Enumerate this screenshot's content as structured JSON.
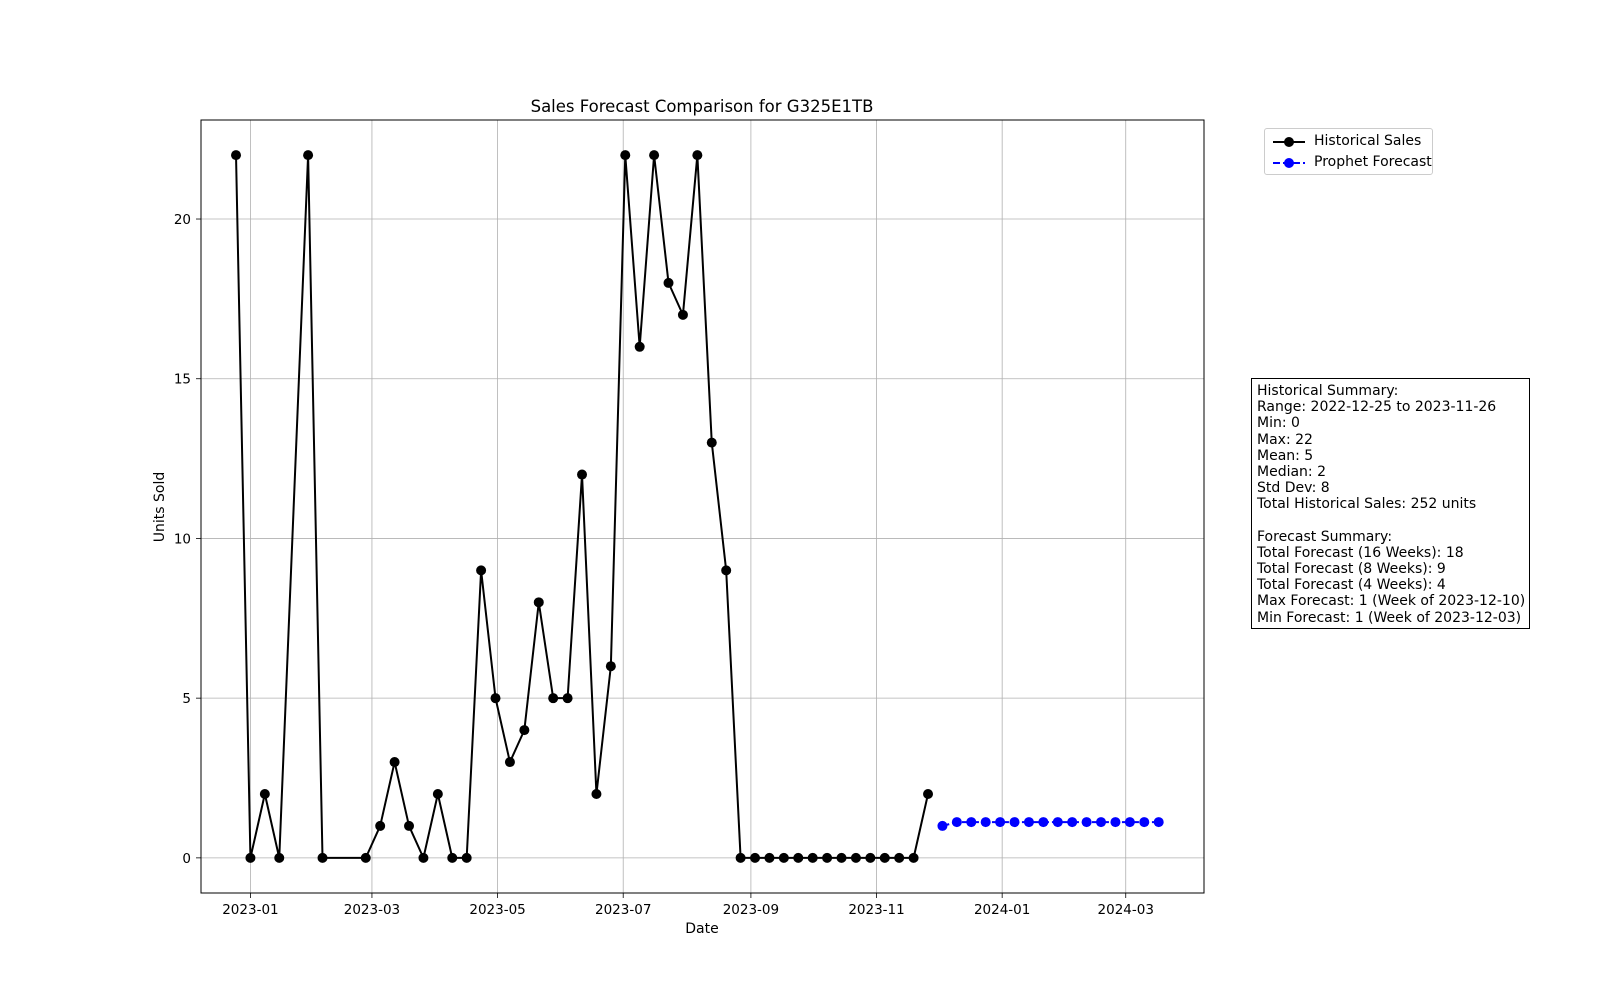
{
  "chart_data": {
    "type": "line",
    "title": "Sales Forecast Comparison for G325E1TB",
    "xlabel": "Date",
    "ylabel": "Units Sold",
    "ylim": [
      -1.1,
      23.1
    ],
    "xlim": [
      "2022-12-08",
      "2024-04-08"
    ],
    "grid": true,
    "legend_position": "upper-right-outside",
    "x_ticks": [
      "2023-01-01",
      "2023-03-01",
      "2023-05-01",
      "2023-07-01",
      "2023-09-01",
      "2023-11-01",
      "2024-01-01",
      "2024-03-01"
    ],
    "x_tick_labels": [
      "2023-01",
      "2023-03",
      "2023-05",
      "2023-07",
      "2023-09",
      "2023-11",
      "2024-01",
      "2024-03"
    ],
    "y_ticks": [
      0,
      5,
      10,
      15,
      20
    ],
    "y_tick_labels": [
      "0",
      "5",
      "10",
      "15",
      "20"
    ],
    "series": [
      {
        "name": "Historical Sales",
        "color": "#000000",
        "line_style": "solid",
        "marker": "circle",
        "x": [
          "2022-12-25",
          "2023-01-01",
          "2023-01-08",
          "2023-01-15",
          "2023-01-29",
          "2023-02-05",
          "2023-02-26",
          "2023-03-05",
          "2023-03-12",
          "2023-03-19",
          "2023-03-26",
          "2023-04-02",
          "2023-04-09",
          "2023-04-16",
          "2023-04-23",
          "2023-04-30",
          "2023-05-07",
          "2023-05-14",
          "2023-05-21",
          "2023-05-28",
          "2023-06-04",
          "2023-06-11",
          "2023-06-18",
          "2023-06-25",
          "2023-07-02",
          "2023-07-09",
          "2023-07-16",
          "2023-07-23",
          "2023-07-30",
          "2023-08-06",
          "2023-08-13",
          "2023-08-20",
          "2023-08-27",
          "2023-09-03",
          "2023-09-10",
          "2023-09-17",
          "2023-09-24",
          "2023-10-01",
          "2023-10-08",
          "2023-10-15",
          "2023-10-22",
          "2023-10-29",
          "2023-11-05",
          "2023-11-12",
          "2023-11-19",
          "2023-11-26"
        ],
        "values": [
          22,
          0,
          2,
          0,
          22,
          0,
          0,
          1,
          3,
          1,
          0,
          2,
          0,
          0,
          9,
          5,
          3,
          4,
          8,
          5,
          5,
          12,
          2,
          6,
          22,
          16,
          22,
          18,
          17,
          22,
          13,
          9,
          0,
          0,
          0,
          0,
          0,
          0,
          0,
          0,
          0,
          0,
          0,
          0,
          0,
          2
        ]
      },
      {
        "name": "Prophet Forecast",
        "color": "#0000ff",
        "line_style": "dashed",
        "marker": "circle",
        "x": [
          "2023-12-03",
          "2023-12-10",
          "2023-12-17",
          "2023-12-24",
          "2023-12-31",
          "2024-01-07",
          "2024-01-14",
          "2024-01-21",
          "2024-01-28",
          "2024-02-04",
          "2024-02-11",
          "2024-02-18",
          "2024-02-25",
          "2024-03-03",
          "2024-03-10",
          "2024-03-17"
        ],
        "values": [
          1.0,
          1.12,
          1.12,
          1.12,
          1.12,
          1.12,
          1.12,
          1.12,
          1.12,
          1.12,
          1.12,
          1.12,
          1.12,
          1.12,
          1.12,
          1.12
        ]
      }
    ]
  },
  "summary": {
    "lines": [
      "Historical Summary:",
      "Range: 2022-12-25 to 2023-11-26",
      "Min: 0",
      "Max: 22",
      "Mean: 5",
      "Median: 2",
      "Std Dev: 8",
      "Total Historical Sales: 252 units",
      "",
      "Forecast Summary:",
      "Total Forecast (16 Weeks): 18",
      "Total Forecast (8 Weeks): 9",
      "Total Forecast (4 Weeks): 4",
      "Max Forecast: 1 (Week of 2023-12-10)",
      "Min Forecast: 1 (Week of 2023-12-03)"
    ]
  }
}
